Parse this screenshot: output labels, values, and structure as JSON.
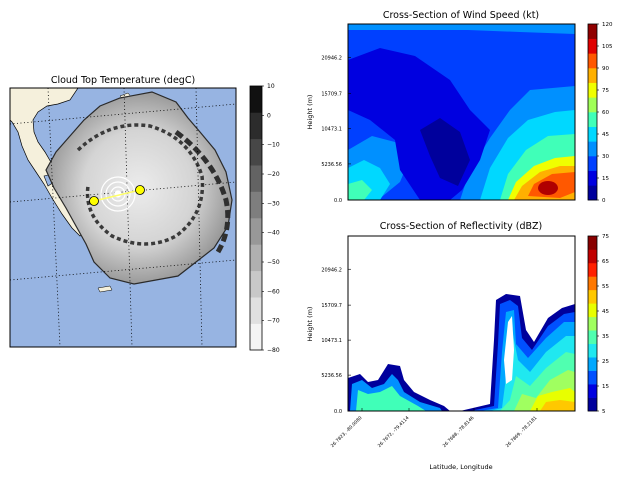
{
  "chart_data": [
    {
      "type": "heatmap",
      "title": "Cloud Top Temperature (degC)",
      "colorbar": {
        "ticks": [
          "10",
          "0",
          "−10",
          "−20",
          "−30",
          "−40",
          "−50",
          "−60",
          "−70",
          "−80"
        ],
        "range": [
          -80,
          10
        ],
        "colors": [
          "#f4f4f4",
          "#e0e0e0",
          "#c8c8c8",
          "#b0b0b0",
          "#989898",
          "#7e7e7e",
          "#636363",
          "#474747",
          "#2c2c2c",
          "#111111"
        ]
      },
      "map_colors": {
        "water": "#97b4e2",
        "land": "#f5f0dc",
        "cross_section_line": "#ffff00"
      }
    },
    {
      "type": "heatmap",
      "title": "Cross-Section of Wind Speed (kt)",
      "ylabel": "Height (m)",
      "yticks": [
        "20946.2",
        "15709.7",
        "10473.1",
        "5236.56",
        "0.0"
      ],
      "colorbar": {
        "ticks": [
          "120",
          "105",
          "90",
          "75",
          "60",
          "45",
          "30",
          "15",
          "0"
        ],
        "range": [
          0,
          120
        ],
        "colors": [
          "#00009c",
          "#0000e0",
          "#0040ff",
          "#0090ff",
          "#00d8ff",
          "#40ffb8",
          "#a0ff58",
          "#f0ff00",
          "#ffb000",
          "#ff5800",
          "#e00000",
          "#900000"
        ]
      }
    },
    {
      "type": "heatmap",
      "title": "Cross-Section of Reflectivity (dBZ)",
      "ylabel": "Height (m)",
      "xlabel": "Latitude, Longitude",
      "yticks": [
        "20946.2",
        "15709.7",
        "10473.1",
        "5236.56",
        "0.0"
      ],
      "xticks": [
        "26.7823, -80.0080",
        "26.7672, -79.4114",
        "26.7688, -78.8146",
        "26.7869, -78.2181"
      ],
      "colorbar": {
        "ticks": [
          "75",
          "65",
          "55",
          "45",
          "35",
          "25",
          "15",
          "5"
        ],
        "range": [
          5,
          75
        ],
        "colors": [
          "#00009c",
          "#0000e0",
          "#0050ff",
          "#00a8ff",
          "#20e8f0",
          "#50ffb0",
          "#a0ff60",
          "#e8ff00",
          "#ffc800",
          "#ff7800",
          "#ff2000",
          "#c00000",
          "#880000"
        ]
      }
    }
  ]
}
